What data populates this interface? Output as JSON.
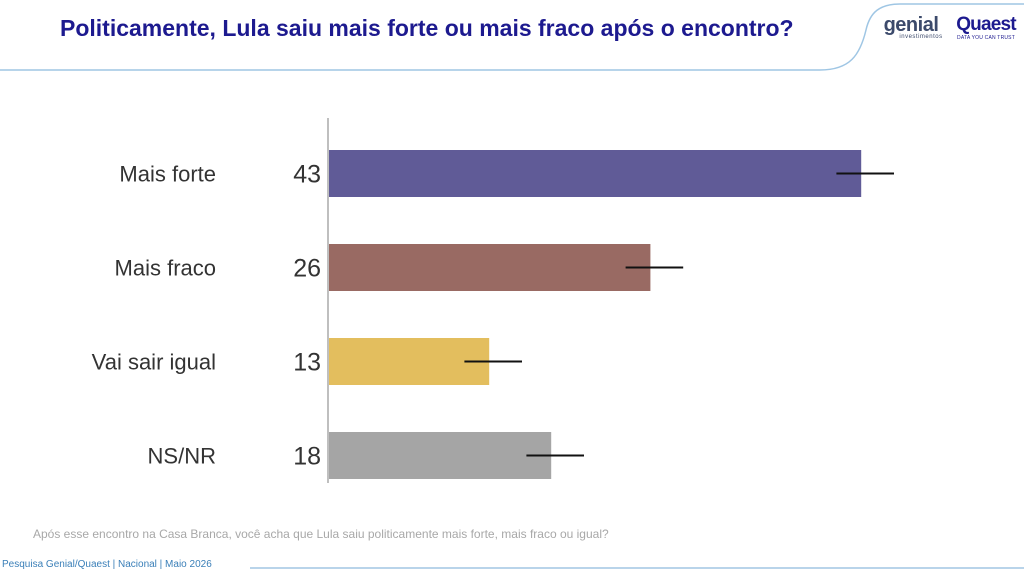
{
  "header": {
    "title": "Politicamente, Lula saiu mais forte ou mais fraco após o encontro?"
  },
  "logos": {
    "genial_main": "genial",
    "genial_sub": "investimentos",
    "quaest_main": "Quaest",
    "quaest_sub": "DATA YOU CAN TRUST"
  },
  "chart_data": {
    "type": "bar",
    "orientation": "horizontal",
    "categories": [
      "Mais forte",
      "Mais fraco",
      "Vai sair igual",
      "NS/NR"
    ],
    "values": [
      43,
      26,
      13,
      18
    ],
    "error_margin": 2,
    "colors": [
      "#605b97",
      "#996a63",
      "#e3be5e",
      "#a5a5a5"
    ],
    "xlim": [
      0,
      45
    ],
    "grid": false,
    "legend": "none"
  },
  "question": "Após esse encontro na Casa Branca, você acha que Lula saiu politicamente mais forte, mais fraco ou igual?",
  "footer": "Pesquisa Genial/Quaest | Nacional | Maio 2026"
}
